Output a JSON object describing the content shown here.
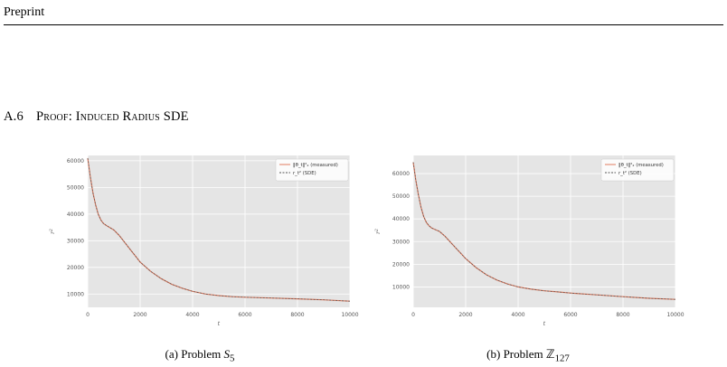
{
  "page": {
    "header": "Preprint",
    "section_number": "A.6",
    "section_title": "Proof: Induced Radius SDE"
  },
  "figures": [
    {
      "caption_prefix": "(a) Problem ",
      "caption_math": "S",
      "caption_sub": "5"
    },
    {
      "caption_prefix": "(b) Problem ",
      "caption_math": "ℤ",
      "caption_sub": "127"
    }
  ],
  "chart_data": [
    {
      "type": "line",
      "xlabel": "t",
      "ylabel": "r_t^2",
      "xlim": [
        0,
        10000
      ],
      "ylim": [
        5000,
        62000
      ],
      "xticks": [
        0,
        2000,
        4000,
        6000,
        8000,
        10000
      ],
      "yticks": [
        10000,
        20000,
        30000,
        40000,
        50000,
        60000
      ],
      "grid": true,
      "legend_position": "top-right",
      "series": [
        {
          "name": "‖θ_t‖²₂ (measured)",
          "color": "#e07b5f",
          "style": "solid",
          "x": [
            0,
            100,
            200,
            300,
            400,
            500,
            600,
            700,
            800,
            1000,
            1200,
            1400,
            1600,
            1800,
            2000,
            2400,
            2800,
            3200,
            3600,
            4000,
            4500,
            5000,
            5500,
            6000,
            7000,
            8000,
            9000,
            10000
          ],
          "values": [
            61000,
            54000,
            48000,
            43500,
            40000,
            37800,
            36500,
            35800,
            35200,
            34000,
            32000,
            29500,
            27000,
            24500,
            22000,
            18500,
            15800,
            13700,
            12200,
            11000,
            10000,
            9400,
            9000,
            8800,
            8500,
            8200,
            7800,
            7300
          ]
        },
        {
          "name": "r_t² (SDE)",
          "color": "#555555",
          "style": "dashed",
          "x": [
            0,
            100,
            200,
            300,
            400,
            500,
            600,
            700,
            800,
            1000,
            1200,
            1400,
            1600,
            1800,
            2000,
            2400,
            2800,
            3200,
            3600,
            4000,
            4500,
            5000,
            5500,
            6000,
            7000,
            8000,
            9000,
            10000
          ],
          "values": [
            61000,
            54000,
            48000,
            43500,
            40000,
            37800,
            36500,
            35800,
            35200,
            34000,
            32000,
            29500,
            27000,
            24500,
            22000,
            18500,
            15800,
            13700,
            12200,
            11000,
            10000,
            9400,
            9000,
            8800,
            8500,
            8200,
            7800,
            7300
          ]
        }
      ]
    },
    {
      "type": "line",
      "xlabel": "t",
      "ylabel": "r_t^2",
      "xlim": [
        0,
        10000
      ],
      "ylim": [
        1000,
        68000
      ],
      "xticks": [
        0,
        2000,
        4000,
        6000,
        8000,
        10000
      ],
      "yticks": [
        10000,
        20000,
        30000,
        40000,
        50000,
        60000
      ],
      "grid": true,
      "legend_position": "top-right",
      "series": [
        {
          "name": "‖θ_t‖²₂ (measured)",
          "color": "#e07b5f",
          "style": "solid",
          "x": [
            0,
            100,
            200,
            300,
            400,
            500,
            600,
            700,
            800,
            1000,
            1200,
            1400,
            1600,
            1800,
            2000,
            2400,
            2800,
            3200,
            3600,
            4000,
            4500,
            5000,
            5500,
            6000,
            7000,
            8000,
            9000,
            10000
          ],
          "values": [
            65000,
            57000,
            50500,
            45000,
            41000,
            38500,
            37000,
            36000,
            35500,
            34500,
            32500,
            30000,
            27500,
            25000,
            22500,
            18500,
            15300,
            13000,
            11300,
            10000,
            9000,
            8300,
            7800,
            7300,
            6500,
            5700,
            5000,
            4500
          ]
        },
        {
          "name": "r_t² (SDE)",
          "color": "#555555",
          "style": "dashed",
          "x": [
            0,
            100,
            200,
            300,
            400,
            500,
            600,
            700,
            800,
            1000,
            1200,
            1400,
            1600,
            1800,
            2000,
            2400,
            2800,
            3200,
            3600,
            4000,
            4500,
            5000,
            5500,
            6000,
            7000,
            8000,
            9000,
            10000
          ],
          "values": [
            65000,
            57000,
            50500,
            45000,
            41000,
            38500,
            37000,
            36000,
            35500,
            34500,
            32500,
            30000,
            27500,
            25000,
            22500,
            18500,
            15300,
            13000,
            11300,
            10000,
            9000,
            8300,
            7800,
            7300,
            6500,
            5700,
            5000,
            4500
          ]
        }
      ]
    }
  ]
}
